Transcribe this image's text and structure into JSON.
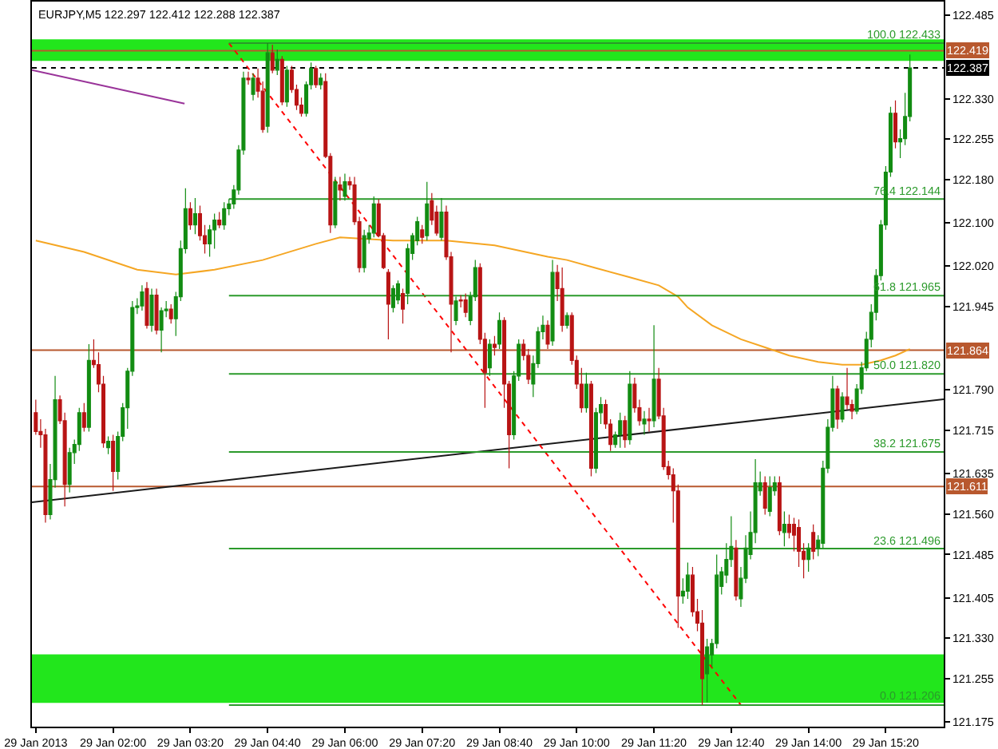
{
  "chart_data": {
    "type": "candlestick",
    "title": "EURJPY,M5 122.297 122.412 122.288 122.387",
    "x": [
      "2013-01-29T00:40",
      "2013-01-29T00:45",
      "2013-01-29T00:50",
      "2013-01-29T00:55",
      "2013-01-29T01:00",
      "2013-01-29T01:05",
      "2013-01-29T01:10",
      "2013-01-29T01:15",
      "2013-01-29T01:20",
      "2013-01-29T01:25",
      "2013-01-29T01:30",
      "2013-01-29T01:35",
      "2013-01-29T01:40",
      "2013-01-29T01:45",
      "2013-01-29T01:50",
      "2013-01-29T01:55",
      "2013-01-29T02:00",
      "2013-01-29T02:05",
      "2013-01-29T02:10",
      "2013-01-29T02:15",
      "2013-01-29T02:20",
      "2013-01-29T02:25",
      "2013-01-29T02:30",
      "2013-01-29T02:35",
      "2013-01-29T02:40",
      "2013-01-29T02:45",
      "2013-01-29T02:50",
      "2013-01-29T02:55",
      "2013-01-29T03:00",
      "2013-01-29T03:05",
      "2013-01-29T03:10",
      "2013-01-29T03:15",
      "2013-01-29T03:20",
      "2013-01-29T03:25",
      "2013-01-29T03:30",
      "2013-01-29T03:35",
      "2013-01-29T03:40",
      "2013-01-29T03:45",
      "2013-01-29T03:50",
      "2013-01-29T03:55",
      "2013-01-29T04:00",
      "2013-01-29T04:05",
      "2013-01-29T04:10",
      "2013-01-29T04:15",
      "2013-01-29T04:20",
      "2013-01-29T04:25",
      "2013-01-29T04:30",
      "2013-01-29T04:35",
      "2013-01-29T04:40",
      "2013-01-29T04:45",
      "2013-01-29T04:50",
      "2013-01-29T04:55",
      "2013-01-29T05:00",
      "2013-01-29T05:05",
      "2013-01-29T05:10",
      "2013-01-29T05:15",
      "2013-01-29T05:20",
      "2013-01-29T05:25",
      "2013-01-29T05:30",
      "2013-01-29T05:35",
      "2013-01-29T05:40",
      "2013-01-29T05:45",
      "2013-01-29T05:50",
      "2013-01-29T05:55",
      "2013-01-29T06:00",
      "2013-01-29T06:05",
      "2013-01-29T06:10",
      "2013-01-29T06:15",
      "2013-01-29T06:20",
      "2013-01-29T06:25",
      "2013-01-29T06:30",
      "2013-01-29T06:35",
      "2013-01-29T06:40",
      "2013-01-29T06:45",
      "2013-01-29T06:50",
      "2013-01-29T06:55",
      "2013-01-29T07:00",
      "2013-01-29T07:05",
      "2013-01-29T07:10",
      "2013-01-29T07:15",
      "2013-01-29T07:20",
      "2013-01-29T07:25",
      "2013-01-29T07:30",
      "2013-01-29T07:35",
      "2013-01-29T07:40",
      "2013-01-29T07:45",
      "2013-01-29T07:50",
      "2013-01-29T07:55",
      "2013-01-29T08:00",
      "2013-01-29T08:05",
      "2013-01-29T08:10",
      "2013-01-29T08:15",
      "2013-01-29T08:20",
      "2013-01-29T08:25",
      "2013-01-29T08:30",
      "2013-01-29T08:35",
      "2013-01-29T08:40",
      "2013-01-29T08:45",
      "2013-01-29T08:50",
      "2013-01-29T08:55",
      "2013-01-29T09:00",
      "2013-01-29T09:05",
      "2013-01-29T09:10",
      "2013-01-29T09:15",
      "2013-01-29T09:20",
      "2013-01-29T09:25",
      "2013-01-29T09:30",
      "2013-01-29T09:35",
      "2013-01-29T09:40",
      "2013-01-29T09:45",
      "2013-01-29T09:50",
      "2013-01-29T09:55",
      "2013-01-29T10:00",
      "2013-01-29T10:05",
      "2013-01-29T10:10",
      "2013-01-29T10:15",
      "2013-01-29T10:20",
      "2013-01-29T10:25",
      "2013-01-29T10:30",
      "2013-01-29T10:35",
      "2013-01-29T10:40",
      "2013-01-29T10:45",
      "2013-01-29T10:50",
      "2013-01-29T10:55",
      "2013-01-29T11:00",
      "2013-01-29T11:05",
      "2013-01-29T11:10",
      "2013-01-29T11:15",
      "2013-01-29T11:20",
      "2013-01-29T11:25",
      "2013-01-29T11:30",
      "2013-01-29T11:35",
      "2013-01-29T11:40",
      "2013-01-29T11:45",
      "2013-01-29T11:50",
      "2013-01-29T11:55",
      "2013-01-29T12:00",
      "2013-01-29T12:05",
      "2013-01-29T12:10",
      "2013-01-29T12:15",
      "2013-01-29T12:20",
      "2013-01-29T12:25",
      "2013-01-29T12:30",
      "2013-01-29T12:35",
      "2013-01-29T12:40",
      "2013-01-29T12:45",
      "2013-01-29T12:50",
      "2013-01-29T12:55",
      "2013-01-29T13:00",
      "2013-01-29T13:05",
      "2013-01-29T13:10",
      "2013-01-29T13:15",
      "2013-01-29T13:20",
      "2013-01-29T13:25",
      "2013-01-29T13:30",
      "2013-01-29T13:35",
      "2013-01-29T13:40",
      "2013-01-29T13:45",
      "2013-01-29T13:50",
      "2013-01-29T13:55",
      "2013-01-29T14:00",
      "2013-01-29T14:05",
      "2013-01-29T14:10",
      "2013-01-29T14:15",
      "2013-01-29T14:20",
      "2013-01-29T14:25",
      "2013-01-29T14:30",
      "2013-01-29T14:35",
      "2013-01-29T14:40",
      "2013-01-29T14:45",
      "2013-01-29T14:50",
      "2013-01-29T14:55",
      "2013-01-29T15:00",
      "2013-01-29T15:05",
      "2013-01-29T15:10",
      "2013-01-29T15:15",
      "2013-01-29T15:20",
      "2013-01-29T15:25",
      "2013-01-29T15:30",
      "2013-01-29T15:35",
      "2013-01-29T15:40",
      "2013-01-29T15:45"
    ],
    "ohlc": [
      [
        121.748,
        121.772,
        121.707,
        121.713
      ],
      [
        121.713,
        121.736,
        121.683,
        121.707
      ],
      [
        121.707,
        121.718,
        121.544,
        121.559
      ],
      [
        121.559,
        121.653,
        121.55,
        121.624
      ],
      [
        121.624,
        121.816,
        121.609,
        121.772
      ],
      [
        121.772,
        121.78,
        121.727,
        121.733
      ],
      [
        121.733,
        121.748,
        121.574,
        121.615
      ],
      [
        121.615,
        121.683,
        121.6,
        121.674
      ],
      [
        121.674,
        121.698,
        121.653,
        121.689
      ],
      [
        121.689,
        121.757,
        121.677,
        121.748
      ],
      [
        121.748,
        121.766,
        121.713,
        121.721
      ],
      [
        121.721,
        121.875,
        121.713,
        121.845
      ],
      [
        121.845,
        121.884,
        121.831,
        121.837
      ],
      [
        121.837,
        121.86,
        121.786,
        121.801
      ],
      [
        121.801,
        121.816,
        121.683,
        121.692
      ],
      [
        121.683,
        121.704,
        121.671,
        121.695
      ],
      [
        121.695,
        121.707,
        121.603,
        121.639
      ],
      [
        121.639,
        121.713,
        121.624,
        121.704
      ],
      [
        121.704,
        121.766,
        121.695,
        121.757
      ],
      [
        121.757,
        121.831,
        121.718,
        121.825
      ],
      [
        121.825,
        121.955,
        121.816,
        121.943
      ],
      [
        121.943,
        121.96,
        121.931,
        121.946
      ],
      [
        121.946,
        121.984,
        121.937,
        121.972
      ],
      [
        121.978,
        121.99,
        121.904,
        121.91
      ],
      [
        121.91,
        121.978,
        121.898,
        121.966
      ],
      [
        121.966,
        121.978,
        121.893,
        121.901
      ],
      [
        121.901,
        121.943,
        121.86,
        121.937
      ],
      [
        121.937,
        121.955,
        121.925,
        121.94
      ],
      [
        121.94,
        121.949,
        121.913,
        121.922
      ],
      [
        121.922,
        121.972,
        121.89,
        121.963
      ],
      [
        121.963,
        122.067,
        121.955,
        122.052
      ],
      [
        122.052,
        122.164,
        122.043,
        122.126
      ],
      [
        122.126,
        122.138,
        122.087,
        122.096
      ],
      [
        122.096,
        122.146,
        122.079,
        122.117
      ],
      [
        122.117,
        122.132,
        122.067,
        122.076
      ],
      [
        122.076,
        122.096,
        122.043,
        122.061
      ],
      [
        122.061,
        122.096,
        122.037,
        122.087
      ],
      [
        122.087,
        122.117,
        122.052,
        122.105
      ],
      [
        122.105,
        122.12,
        122.09,
        122.096
      ],
      [
        122.096,
        122.138,
        122.087,
        122.126
      ],
      [
        122.126,
        122.144,
        122.114,
        122.135
      ],
      [
        122.135,
        122.17,
        122.126,
        122.161
      ],
      [
        122.161,
        122.244,
        122.152,
        122.235
      ],
      [
        122.235,
        122.38,
        122.226,
        122.368
      ],
      [
        122.368,
        122.38,
        122.356,
        122.365
      ],
      [
        122.338,
        122.377,
        122.327,
        122.368
      ],
      [
        122.368,
        122.386,
        122.332,
        122.344
      ],
      [
        122.344,
        122.362,
        122.267,
        122.273
      ],
      [
        122.279,
        122.433,
        122.267,
        122.415
      ],
      [
        122.415,
        122.43,
        122.377,
        122.383
      ],
      [
        122.383,
        122.421,
        122.374,
        122.403
      ],
      [
        122.403,
        122.409,
        122.318,
        122.324
      ],
      [
        122.324,
        122.391,
        122.315,
        122.383
      ],
      [
        122.383,
        122.391,
        122.341,
        122.347
      ],
      [
        122.347,
        122.356,
        122.309,
        122.318
      ],
      [
        122.318,
        122.332,
        122.297,
        122.303
      ],
      [
        122.303,
        122.362,
        122.297,
        122.356
      ],
      [
        122.356,
        122.397,
        122.347,
        122.386
      ],
      [
        122.386,
        122.391,
        122.35,
        122.356
      ],
      [
        122.356,
        122.377,
        122.347,
        122.368
      ],
      [
        122.362,
        122.377,
        122.22,
        122.223
      ],
      [
        122.223,
        122.229,
        122.081,
        122.096
      ],
      [
        122.096,
        122.185,
        122.09,
        122.176
      ],
      [
        122.17,
        122.185,
        122.141,
        122.161
      ],
      [
        122.149,
        122.191,
        122.141,
        122.176
      ],
      [
        122.176,
        122.185,
        122.161,
        122.17
      ],
      [
        122.17,
        122.185,
        122.096,
        122.102
      ],
      [
        122.102,
        122.111,
        122.008,
        122.017
      ],
      [
        122.017,
        122.087,
        122.008,
        122.076
      ],
      [
        122.07,
        122.096,
        122.061,
        122.081
      ],
      [
        122.081,
        122.149,
        122.073,
        122.135
      ],
      [
        122.135,
        122.144,
        122.073,
        122.076
      ],
      [
        122.076,
        122.081,
        122.014,
        122.017
      ],
      [
        122.008,
        122.014,
        121.884,
        121.949
      ],
      [
        121.943,
        121.984,
        121.934,
        121.978
      ],
      [
        121.957,
        121.993,
        121.949,
        121.987
      ],
      [
        121.969,
        121.978,
        121.913,
        121.94
      ],
      [
        121.969,
        122.061,
        121.949,
        122.052
      ],
      [
        122.043,
        122.081,
        122.031,
        122.076
      ],
      [
        122.067,
        122.111,
        122.058,
        122.102
      ],
      [
        122.087,
        122.096,
        122.061,
        122.073
      ],
      [
        122.076,
        122.176,
        122.067,
        122.135
      ],
      [
        122.141,
        122.155,
        122.096,
        122.105
      ],
      [
        122.12,
        122.132,
        122.076,
        122.081
      ],
      [
        122.073,
        122.146,
        122.067,
        122.12
      ],
      [
        122.12,
        122.132,
        122.031,
        122.037
      ],
      [
        122.037,
        122.046,
        121.86,
        121.949
      ],
      [
        121.919,
        121.963,
        121.91,
        121.955
      ],
      [
        121.957,
        121.966,
        121.943,
        121.955
      ],
      [
        121.957,
        121.969,
        121.925,
        121.934
      ],
      [
        121.919,
        121.972,
        121.91,
        121.963
      ],
      [
        121.963,
        122.031,
        121.955,
        122.017
      ],
      [
        122.017,
        122.025,
        121.875,
        121.884
      ],
      [
        121.884,
        121.896,
        121.757,
        121.822
      ],
      [
        121.831,
        121.884,
        121.816,
        121.875
      ],
      [
        121.875,
        121.89,
        121.854,
        121.869
      ],
      [
        121.875,
        121.934,
        121.866,
        121.919
      ],
      [
        121.919,
        121.925,
        121.757,
        121.801
      ],
      [
        121.801,
        121.807,
        121.645,
        121.707
      ],
      [
        121.707,
        121.825,
        121.698,
        121.816
      ],
      [
        121.816,
        121.884,
        121.807,
        121.875
      ],
      [
        121.875,
        121.884,
        121.845,
        121.854
      ],
      [
        121.854,
        121.866,
        121.801,
        121.81
      ],
      [
        121.801,
        121.854,
        121.777,
        121.839
      ],
      [
        121.839,
        121.907,
        121.831,
        121.898
      ],
      [
        121.898,
        121.928,
        121.884,
        121.91
      ],
      [
        121.91,
        121.919,
        121.866,
        121.875
      ],
      [
        121.881,
        122.031,
        121.872,
        122.008
      ],
      [
        122.008,
        122.022,
        121.955,
        121.978
      ],
      [
        121.978,
        122.017,
        121.898,
        121.91
      ],
      [
        121.91,
        121.934,
        121.904,
        121.928
      ],
      [
        121.928,
        121.934,
        121.837,
        121.845
      ],
      [
        121.845,
        121.854,
        121.792,
        121.801
      ],
      [
        121.801,
        121.831,
        121.748,
        121.757
      ],
      [
        121.757,
        121.822,
        121.748,
        121.801
      ],
      [
        121.801,
        121.807,
        121.63,
        121.645
      ],
      [
        121.645,
        121.757,
        121.636,
        121.748
      ],
      [
        121.748,
        121.777,
        121.727,
        121.763
      ],
      [
        121.763,
        121.772,
        121.718,
        121.727
      ],
      [
        121.727,
        121.736,
        121.677,
        121.689
      ],
      [
        121.689,
        121.713,
        121.683,
        121.707
      ],
      [
        121.707,
        121.748,
        121.683,
        121.733
      ],
      [
        121.733,
        121.742,
        121.683,
        121.698
      ],
      [
        121.698,
        121.825,
        121.689,
        121.801
      ],
      [
        121.801,
        121.813,
        121.748,
        121.757
      ],
      [
        121.757,
        121.772,
        121.724,
        121.733
      ],
      [
        121.727,
        121.751,
        121.707,
        121.736
      ],
      [
        121.736,
        121.757,
        121.713,
        121.733
      ],
      [
        121.733,
        121.91,
        121.721,
        121.81
      ],
      [
        121.81,
        121.831,
        121.736,
        121.742
      ],
      [
        121.742,
        121.757,
        121.642,
        121.648
      ],
      [
        121.648,
        121.659,
        121.624,
        121.633
      ],
      [
        121.633,
        121.645,
        121.544,
        121.603
      ],
      [
        121.603,
        121.615,
        121.349,
        121.408
      ],
      [
        121.408,
        121.441,
        121.394,
        121.417
      ],
      [
        121.417,
        121.47,
        121.403,
        121.447
      ],
      [
        121.447,
        121.462,
        121.37,
        121.379
      ],
      [
        121.379,
        121.403,
        121.343,
        121.358
      ],
      [
        121.358,
        121.382,
        121.206,
        121.255
      ],
      [
        121.264,
        121.329,
        121.211,
        121.314
      ],
      [
        121.299,
        121.329,
        121.276,
        121.32
      ],
      [
        121.32,
        121.485,
        121.311,
        121.447
      ],
      [
        121.426,
        121.462,
        121.411,
        121.453
      ],
      [
        121.447,
        121.506,
        121.432,
        121.476
      ],
      [
        121.476,
        121.556,
        121.462,
        121.5
      ],
      [
        121.497,
        121.512,
        121.4,
        121.408
      ],
      [
        121.403,
        121.462,
        121.388,
        121.441
      ],
      [
        121.441,
        121.521,
        121.432,
        121.497
      ],
      [
        121.485,
        121.565,
        121.476,
        121.526
      ],
      [
        121.526,
        121.662,
        121.506,
        121.618
      ],
      [
        121.603,
        121.639,
        121.594,
        121.618
      ],
      [
        121.618,
        121.63,
        121.559,
        121.571
      ],
      [
        121.565,
        121.63,
        121.556,
        121.609
      ],
      [
        121.603,
        121.63,
        121.594,
        121.618
      ],
      [
        121.618,
        121.63,
        121.521,
        121.529
      ],
      [
        121.526,
        121.565,
        121.5,
        121.541
      ],
      [
        121.541,
        121.559,
        121.515,
        121.526
      ],
      [
        121.541,
        121.553,
        121.491,
        121.521
      ],
      [
        121.535,
        121.55,
        121.462,
        121.491
      ],
      [
        121.491,
        121.506,
        121.441,
        121.476
      ],
      [
        121.476,
        121.506,
        121.453,
        121.497
      ],
      [
        121.526,
        121.541,
        121.476,
        121.491
      ],
      [
        121.497,
        121.521,
        121.482,
        121.512
      ],
      [
        121.506,
        121.659,
        121.497,
        121.645
      ],
      [
        121.645,
        121.736,
        121.636,
        121.721
      ],
      [
        121.721,
        121.816,
        121.713,
        121.792
      ],
      [
        121.792,
        121.798,
        121.718,
        121.736
      ],
      [
        121.736,
        121.786,
        121.73,
        121.777
      ],
      [
        121.777,
        121.831,
        121.754,
        121.763
      ],
      [
        121.763,
        121.772,
        121.736,
        121.751
      ],
      [
        121.751,
        121.801,
        121.745,
        121.792
      ],
      [
        121.792,
        121.842,
        121.783,
        121.831
      ],
      [
        121.831,
        121.898,
        121.825,
        121.884
      ],
      [
        121.884,
        121.949,
        121.869,
        121.934
      ],
      [
        121.934,
        122.014,
        121.919,
        122.002
      ],
      [
        122.002,
        122.105,
        121.993,
        122.096
      ],
      [
        122.096,
        122.205,
        122.087,
        122.194
      ],
      [
        122.194,
        122.315,
        122.185,
        122.303
      ],
      [
        122.303,
        122.327,
        122.238,
        122.25
      ],
      [
        122.25,
        122.273,
        122.22,
        122.256
      ],
      [
        122.256,
        122.341,
        122.244,
        122.297
      ],
      [
        122.297,
        122.412,
        122.288,
        122.387
      ]
    ],
    "colors": [
      "#b81414",
      "#b81414",
      "#b81414",
      "#128c12",
      "#128c12",
      "#b81414",
      "#b81414",
      "#128c12",
      "#128c12",
      "#128c12",
      "#b81414",
      "#128c12",
      "#b81414",
      "#b81414",
      "#b81414",
      "#128c12",
      "#b81414",
      "#128c12",
      "#128c12",
      "#128c12",
      "#128c12",
      "#128c12",
      "#128c12",
      "#b81414",
      "#128c12",
      "#b81414",
      "#128c12",
      "#128c12",
      "#b81414",
      "#128c12",
      "#128c12",
      "#128c12",
      "#b81414",
      "#128c12",
      "#b81414",
      "#b81414",
      "#128c12",
      "#128c12",
      "#b81414",
      "#128c12",
      "#128c12",
      "#128c12",
      "#128c12",
      "#128c12",
      "#b81414",
      "#128c12",
      "#b81414",
      "#b81414",
      "#128c12",
      "#b81414",
      "#128c12",
      "#b81414",
      "#128c12",
      "#b81414",
      "#b81414",
      "#b81414",
      "#128c12",
      "#128c12",
      "#b81414",
      "#128c12",
      "#b81414",
      "#b81414",
      "#128c12",
      "#b81414",
      "#128c12",
      "#b81414",
      "#b81414",
      "#b81414",
      "#128c12",
      "#128c12",
      "#128c12",
      "#b81414",
      "#b81414",
      "#b81414",
      "#128c12",
      "#128c12",
      "#b81414",
      "#128c12",
      "#128c12",
      "#128c12",
      "#b81414",
      "#128c12",
      "#b81414",
      "#b81414",
      "#128c12",
      "#b81414",
      "#b81414",
      "#128c12",
      "#b81414",
      "#b81414",
      "#128c12",
      "#128c12",
      "#b81414",
      "#b81414",
      "#128c12",
      "#b81414",
      "#128c12",
      "#b81414",
      "#b81414",
      "#128c12",
      "#128c12",
      "#b81414",
      "#b81414",
      "#128c12",
      "#128c12",
      "#128c12",
      "#b81414",
      "#128c12",
      "#b81414",
      "#b81414",
      "#128c12",
      "#b81414",
      "#b81414",
      "#b81414",
      "#128c12",
      "#b81414",
      "#128c12",
      "#128c12",
      "#b81414",
      "#b81414",
      "#128c12",
      "#128c12",
      "#b81414",
      "#128c12",
      "#b81414",
      "#b81414",
      "#128c12",
      "#b81414",
      "#128c12",
      "#b81414",
      "#b81414",
      "#b81414",
      "#b81414",
      "#b81414",
      "#128c12",
      "#128c12",
      "#b81414",
      "#b81414",
      "#b81414",
      "#128c12",
      "#128c12",
      "#128c12",
      "#128c12",
      "#128c12",
      "#128c12",
      "#b81414",
      "#128c12",
      "#128c12",
      "#128c12",
      "#128c12",
      "#128c12",
      "#b81414",
      "#128c12",
      "#128c12",
      "#b81414",
      "#128c12",
      "#b81414",
      "#b81414",
      "#b81414",
      "#b81414",
      "#128c12",
      "#b81414",
      "#128c12",
      "#128c12",
      "#128c12",
      "#128c12",
      "#b81414",
      "#128c12",
      "#b81414",
      "#b81414",
      "#128c12",
      "#128c12",
      "#128c12",
      "#128c12",
      "#128c12",
      "#128c12",
      "#128c12",
      "#128c12",
      "#b81414",
      "#128c12",
      "#128c12",
      "#128c12"
    ],
    "series": [
      {
        "type": "line",
        "color": "#f5a623",
        "x": [
          "2013-01-29T00:40",
          "2013-01-29T01:30",
          "2013-01-29T02:25",
          "2013-01-29T03:05",
          "2013-01-29T03:45",
          "2013-01-29T04:35",
          "2013-01-29T05:30",
          "2013-01-29T05:55",
          "2013-01-29T06:50",
          "2013-01-29T07:45",
          "2013-01-29T08:35",
          "2013-01-29T09:30",
          "2013-01-29T09:50",
          "2013-01-29T10:20",
          "2013-01-29T10:55",
          "2013-01-29T11:25",
          "2013-01-29T11:45",
          "2013-01-29T11:55",
          "2013-01-29T12:20",
          "2013-01-29T12:50",
          "2013-01-29T13:15",
          "2013-01-29T13:40",
          "2013-01-29T14:10",
          "2013-01-29T14:35",
          "2013-01-29T14:55",
          "2013-01-29T15:15",
          "2013-01-29T15:30",
          "2013-01-29T15:45"
        ],
        "values": [
          122.067,
          122.046,
          122.013,
          122.004,
          122.013,
          122.031,
          122.061,
          122.073,
          122.067,
          122.067,
          122.058,
          122.037,
          122.031,
          122.016,
          121.999,
          121.984,
          121.963,
          121.943,
          121.91,
          121.884,
          121.869,
          121.854,
          121.842,
          121.837,
          121.837,
          121.845,
          121.854,
          121.866
        ]
      },
      {
        "type": "line",
        "color": "#993399",
        "x": [
          "2013-01-29T00:36",
          "2013-01-29T03:14"
        ],
        "values": [
          122.383,
          122.321
        ]
      },
      {
        "type": "line",
        "color": "#1a1a1a",
        "x": [
          "2013-01-29T00:36",
          "2013-01-29T16:20"
        ],
        "values": [
          121.582,
          121.773
        ]
      },
      {
        "type": "line",
        "color": "#ff0000",
        "line_style": "dotted",
        "x": [
          "2013-01-29T04:00",
          "2013-01-29T12:50"
        ],
        "values": [
          122.433,
          121.206
        ]
      },
      {
        "type": "line",
        "name": "100.0 122.433",
        "color": "#2b9a2b",
        "x": [
          "2013-01-29T04:00",
          "2013-01-29T16:20"
        ],
        "values": [
          122.433,
          122.433
        ]
      },
      {
        "type": "line",
        "name": "76.4 122.144",
        "color": "#2b9a2b",
        "x": [
          "2013-01-29T04:00",
          "2013-01-29T16:20"
        ],
        "values": [
          122.144,
          122.144
        ]
      },
      {
        "type": "line",
        "name": "61.8 121.965",
        "color": "#2b9a2b",
        "x": [
          "2013-01-29T04:00",
          "2013-01-29T16:20"
        ],
        "values": [
          121.965,
          121.965
        ]
      },
      {
        "type": "line",
        "name": "50.0 121.820",
        "color": "#2b9a2b",
        "x": [
          "2013-01-29T04:00",
          "2013-01-29T16:20"
        ],
        "values": [
          121.82,
          121.82
        ]
      },
      {
        "type": "line",
        "name": "38.2 121.675",
        "color": "#2b9a2b",
        "x": [
          "2013-01-29T04:00",
          "2013-01-29T16:20"
        ],
        "values": [
          121.675,
          121.675
        ]
      },
      {
        "type": "line",
        "name": "23.6 121.496",
        "color": "#2b9a2b",
        "x": [
          "2013-01-29T04:00",
          "2013-01-29T16:20"
        ],
        "values": [
          121.496,
          121.496
        ]
      },
      {
        "type": "line",
        "name": "0.0 121.206",
        "color": "#2b9a2b",
        "x": [
          "2013-01-29T04:00",
          "2013-01-29T16:20"
        ],
        "values": [
          121.206,
          121.206
        ]
      }
    ],
    "ref_lines": [
      {
        "axis": "y",
        "value": 122.419,
        "label": "122.419",
        "color": "#b8582e"
      },
      {
        "axis": "y",
        "value": 122.387,
        "label": "122.387",
        "color": "#000000",
        "line_style": "dotted"
      },
      {
        "axis": "y",
        "value": 121.864,
        "label": "121.864",
        "color": "#b8582e"
      },
      {
        "axis": "y",
        "value": 121.611,
        "label": "121.611",
        "color": "#b8582e"
      }
    ],
    "bands": [
      {
        "axis": "y",
        "from": 122.4,
        "to": 122.44,
        "color": "#22e61c"
      },
      {
        "axis": "y",
        "from": 121.21,
        "to": 121.3,
        "color": "#22e61c"
      }
    ],
    "xlim": [
      "2013-01-29T00:36",
      "2013-01-29T16:20"
    ],
    "xticks": [
      {
        "value": "2013-01-29T00:40",
        "label": "29 Jan 2013"
      },
      {
        "value": "2013-01-29T02:00",
        "label": "29 Jan 02:00"
      },
      {
        "value": "2013-01-29T03:20",
        "label": "29 Jan 03:20"
      },
      {
        "value": "2013-01-29T04:40",
        "label": "29 Jan 04:40"
      },
      {
        "value": "2013-01-29T06:00",
        "label": "29 Jan 06:00"
      },
      {
        "value": "2013-01-29T07:20",
        "label": "29 Jan 07:20"
      },
      {
        "value": "2013-01-29T08:40",
        "label": "29 Jan 08:40"
      },
      {
        "value": "2013-01-29T10:00",
        "label": "29 Jan 10:00"
      },
      {
        "value": "2013-01-29T11:20",
        "label": "29 Jan 11:20"
      },
      {
        "value": "2013-01-29T12:40",
        "label": "29 Jan 12:40"
      },
      {
        "value": "2013-01-29T14:00",
        "label": "29 Jan 14:00"
      },
      {
        "value": "2013-01-29T15:20",
        "label": "29 Jan 15:20"
      }
    ],
    "ylim": [
      121.166,
      122.51
    ],
    "yticks": [
      122.485,
      {
        "value": 122.33,
        "label": "122.330"
      },
      122.255,
      {
        "value": 122.18,
        "label": "122.180"
      },
      {
        "value": 122.1,
        "label": "122.100"
      },
      {
        "value": 122.02,
        "label": "122.020"
      },
      121.945,
      {
        "value": 121.79,
        "label": "121.790"
      },
      121.715,
      121.635,
      {
        "value": 121.56,
        "label": "121.560"
      },
      121.485,
      121.405,
      {
        "value": 121.33,
        "label": "121.330"
      },
      121.255,
      121.175
    ]
  }
}
